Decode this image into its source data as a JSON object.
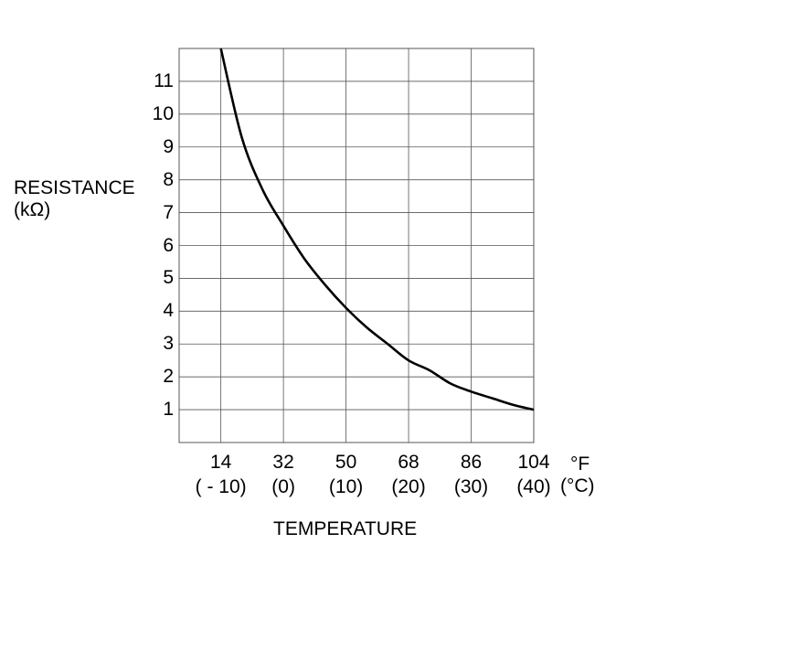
{
  "chart_data": {
    "type": "line",
    "title": "",
    "ylabel_line1": "RESISTANCE",
    "ylabel_line2": "(kΩ)",
    "xlabel": "TEMPERATURE",
    "x_unit_primary": "°F",
    "x_unit_secondary": "(°C)",
    "x_ticks": [
      {
        "f": "14",
        "c": "( - 10)",
        "value": 14
      },
      {
        "f": "32",
        "c": "(0)",
        "value": 32
      },
      {
        "f": "50",
        "c": "(10)",
        "value": 50
      },
      {
        "f": "68",
        "c": "(20)",
        "value": 68
      },
      {
        "f": "86",
        "c": "(30)",
        "value": 86
      },
      {
        "f": "104",
        "c": "(40)",
        "value": 104
      }
    ],
    "y_ticks": [
      1,
      2,
      3,
      4,
      5,
      6,
      7,
      8,
      9,
      10,
      11
    ],
    "xlim": [
      2,
      104
    ],
    "ylim": [
      0,
      12
    ],
    "grid": true,
    "series": [
      {
        "x": [
          14,
          20,
          26,
          32,
          38,
          44,
          50,
          56,
          62,
          68,
          74,
          80,
          86,
          92,
          98,
          104
        ],
        "y": [
          12.0,
          9.3,
          7.7,
          6.6,
          5.6,
          4.8,
          4.1,
          3.5,
          3.0,
          2.5,
          2.2,
          1.8,
          1.55,
          1.35,
          1.15,
          1.0
        ]
      }
    ]
  }
}
